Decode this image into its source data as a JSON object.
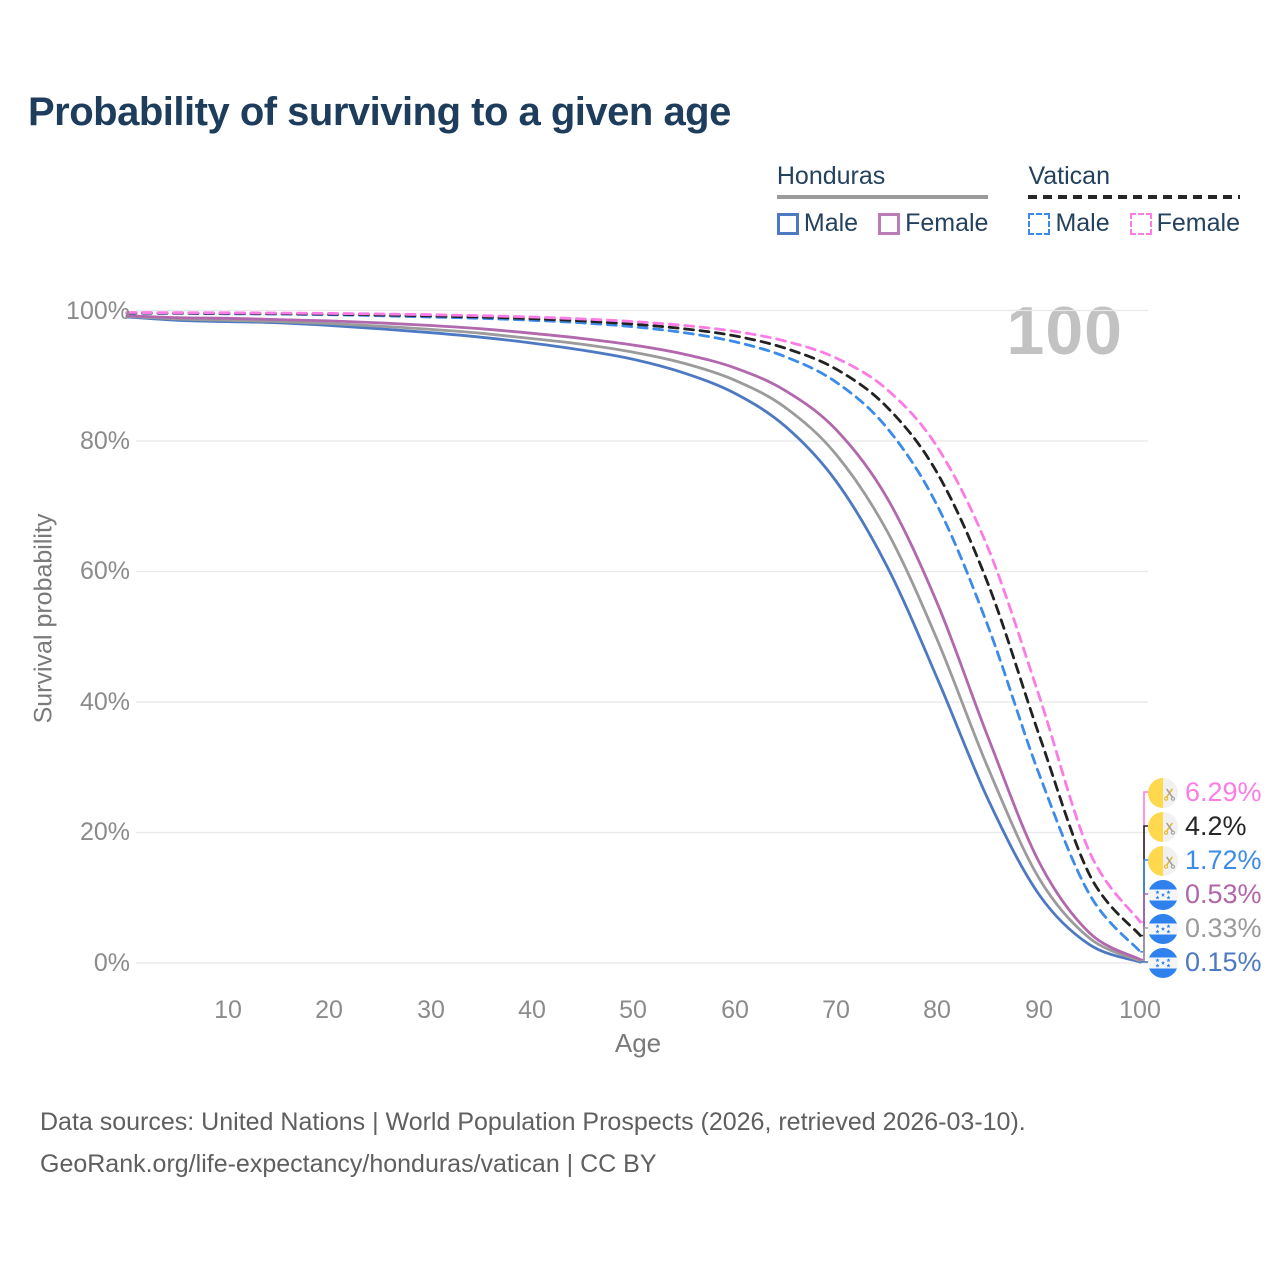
{
  "title": "Probability of surviving to a given age",
  "age_annotation": "100",
  "legend": {
    "groups": [
      {
        "name": "Honduras",
        "line_style": "solid",
        "underline_color": "#9b9b9b",
        "items": [
          {
            "label": "Male",
            "color": "#4d79c2",
            "dashed": false
          },
          {
            "label": "Female",
            "color": "#b97eb5",
            "dashed": false
          }
        ]
      },
      {
        "name": "Vatican",
        "line_style": "dashed",
        "underline_color": "#262626",
        "items": [
          {
            "label": "Male",
            "color": "#3c8be9",
            "dashed": true
          },
          {
            "label": "Female",
            "color": "#fb7ce4",
            "dashed": true
          }
        ]
      }
    ]
  },
  "y_axis": {
    "label": "Survival probability",
    "ticks": [
      "100%",
      "80%",
      "60%",
      "40%",
      "20%",
      "0%"
    ]
  },
  "x_axis": {
    "label": "Age",
    "ticks": [
      "10",
      "20",
      "30",
      "40",
      "50",
      "60",
      "70",
      "80",
      "90",
      "100"
    ]
  },
  "annotations": [
    {
      "value": "6.29%",
      "pct": 6.29,
      "color": "#fb7ce4",
      "flag": "vatican",
      "series": "Vatican Female"
    },
    {
      "value": "4.2%",
      "pct": 4.2,
      "color": "#262626",
      "flag": "vatican",
      "series": "Vatican Average"
    },
    {
      "value": "1.72%",
      "pct": 1.72,
      "color": "#3c8be9",
      "flag": "vatican",
      "series": "Vatican Male"
    },
    {
      "value": "0.53%",
      "pct": 0.53,
      "color": "#b066a8",
      "flag": "honduras",
      "series": "Honduras Female"
    },
    {
      "value": "0.33%",
      "pct": 0.33,
      "color": "#9b9b9b",
      "flag": "honduras",
      "series": "Honduras Average"
    },
    {
      "value": "0.15%",
      "pct": 0.15,
      "color": "#4d79c2",
      "flag": "honduras",
      "series": "Honduras Male"
    }
  ],
  "footer": {
    "line1": "Data sources: United Nations | World Population Prospects (2026, retrieved 2026-03-10).",
    "line2": "GeoRank.org/life-expectancy/honduras/vatican | CC BY"
  },
  "chart_data": {
    "type": "line",
    "title": "Probability of surviving to a given age",
    "xlabel": "Age",
    "ylabel": "Survival probability",
    "xlim": [
      0,
      100
    ],
    "ylim": [
      0,
      100
    ],
    "grid": "horizontal",
    "legend_position": "top-right",
    "x": [
      0,
      5,
      10,
      15,
      20,
      25,
      30,
      35,
      40,
      45,
      50,
      55,
      60,
      65,
      70,
      75,
      80,
      85,
      90,
      95,
      100
    ],
    "series": [
      {
        "name": "Honduras Male",
        "color": "#4d79c2",
        "dash": false,
        "end_label": "0.15%",
        "values": [
          99.0,
          98.5,
          98.3,
          98.1,
          97.7,
          97.2,
          96.6,
          95.9,
          95.0,
          93.9,
          92.5,
          90.4,
          87.3,
          82.2,
          73.8,
          60.8,
          43.5,
          25.0,
          10.5,
          2.8,
          0.15
        ]
      },
      {
        "name": "Honduras Average",
        "color": "#9b9b9b",
        "dash": false,
        "end_label": "0.33%",
        "values": [
          99.1,
          98.7,
          98.5,
          98.3,
          98.0,
          97.6,
          97.1,
          96.5,
          95.7,
          94.8,
          93.6,
          91.9,
          89.3,
          85.1,
          77.9,
          66.2,
          49.4,
          29.8,
          13.0,
          3.8,
          0.33
        ]
      },
      {
        "name": "Honduras Female",
        "color": "#b168ad",
        "dash": false,
        "end_label": "0.53%",
        "values": [
          99.2,
          98.9,
          98.8,
          98.6,
          98.4,
          98.1,
          97.7,
          97.2,
          96.5,
          95.7,
          94.7,
          93.3,
          91.2,
          87.7,
          81.7,
          71.3,
          55.0,
          34.5,
          15.5,
          4.6,
          0.53
        ]
      },
      {
        "name": "Vatican Male",
        "color": "#3c8be9",
        "dash": true,
        "end_label": "1.72%",
        "values": [
          99.6,
          99.55,
          99.5,
          99.45,
          99.35,
          99.2,
          99.0,
          98.8,
          98.5,
          98.1,
          97.5,
          96.6,
          95.2,
          92.9,
          89.0,
          82.0,
          70.0,
          51.5,
          29.0,
          10.5,
          1.72
        ]
      },
      {
        "name": "Vatican Average",
        "color": "#222222",
        "dash": true,
        "end_label": "4.2%",
        "values": [
          99.65,
          99.6,
          99.57,
          99.52,
          99.45,
          99.33,
          99.17,
          99.0,
          98.75,
          98.4,
          97.9,
          97.2,
          96.1,
          94.2,
          91.0,
          85.2,
          75.0,
          58.0,
          35.0,
          13.5,
          4.2
        ]
      },
      {
        "name": "Vatican Female",
        "color": "#fb7ce4",
        "dash": true,
        "end_label": "6.29%",
        "values": [
          99.7,
          99.67,
          99.64,
          99.6,
          99.55,
          99.47,
          99.35,
          99.2,
          99.0,
          98.7,
          98.3,
          97.7,
          96.8,
          95.3,
          92.7,
          87.9,
          79.0,
          63.5,
          41.0,
          17.0,
          6.29
        ]
      }
    ]
  }
}
